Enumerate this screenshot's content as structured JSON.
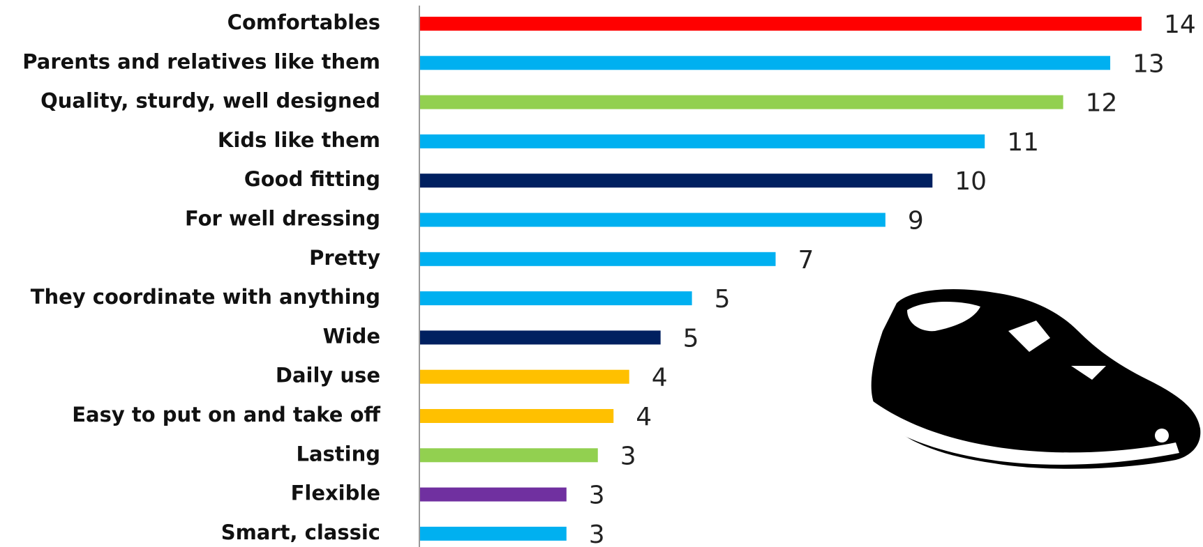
{
  "chart_data": {
    "type": "hbar",
    "categories": [
      "Comfortables",
      "Parents and relatives like them",
      "Quality, sturdy, well designed",
      "Kids like them",
      "Good fitting",
      "For well dressing",
      "Pretty",
      "They coordinate with anything",
      "Wide",
      "Daily use",
      "Easy to put on and take off",
      "Lasting",
      "Flexible",
      "Smart, classic"
    ],
    "values": [
      13.8,
      13.2,
      12.3,
      10.8,
      9.8,
      8.9,
      6.8,
      5.2,
      4.6,
      4.0,
      3.7,
      3.4,
      2.8,
      2.8
    ],
    "value_labels": [
      "14",
      "13",
      "12",
      "11",
      "10",
      "9",
      "7",
      "5",
      "5",
      "4",
      "4",
      "3",
      "3",
      "3"
    ],
    "colors": [
      "#ff0000",
      "#00b0f0",
      "#92d050",
      "#00b0f0",
      "#002060",
      "#00b0f0",
      "#00b0f0",
      "#00b0f0",
      "#002060",
      "#ffc000",
      "#ffc000",
      "#92d050",
      "#7030a0",
      "#00b0f0"
    ]
  }
}
